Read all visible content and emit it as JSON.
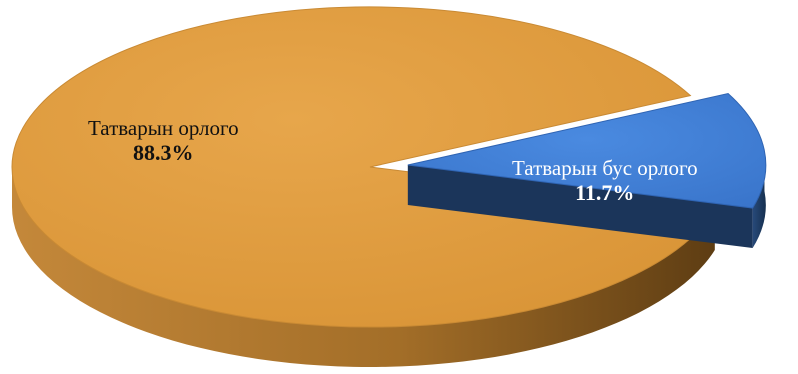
{
  "chart_data": {
    "type": "pie",
    "style": "3d-exploded",
    "slices": [
      {
        "label": "Татварын орлого",
        "value": 88.3,
        "value_text": "88.3%",
        "color": "#DE9A3E",
        "side_color": "#8A5B1F"
      },
      {
        "label": "Татварын бус орлого",
        "value": 11.7,
        "value_text": "11.7%",
        "color": "#3E7FD6",
        "side_color": "#1E3E6B"
      }
    ]
  }
}
